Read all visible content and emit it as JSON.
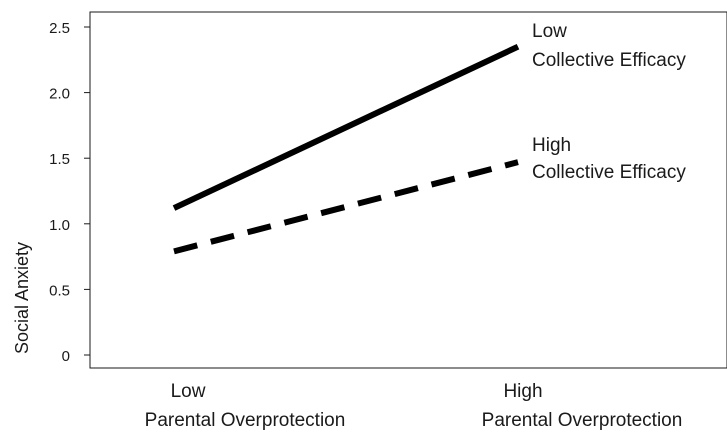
{
  "chart_data": {
    "type": "line",
    "title": "",
    "ylabel": "Social Anxiety",
    "xlabel": "",
    "ylim": [
      0,
      2.5
    ],
    "yticks": [
      "0",
      "0.5",
      "1.0",
      "1.5",
      "2.0",
      "2.5"
    ],
    "ytick_values": [
      0,
      0.5,
      1.0,
      1.5,
      2.0,
      2.5
    ],
    "categories": [
      {
        "line1": "Low",
        "line2": "Parental Overprotection"
      },
      {
        "line1": "High",
        "line2": "Parental Overprotection"
      }
    ],
    "grid": false,
    "series": [
      {
        "name_line1": "Low",
        "name_line2": "Collective Efficacy",
        "values": [
          1.12,
          2.35
        ],
        "style": "solid",
        "color": "#000000"
      },
      {
        "name_line1": "High",
        "name_line2": "Collective Efficacy",
        "values": [
          0.79,
          1.47
        ],
        "style": "dashed",
        "color": "#000000"
      }
    ]
  }
}
